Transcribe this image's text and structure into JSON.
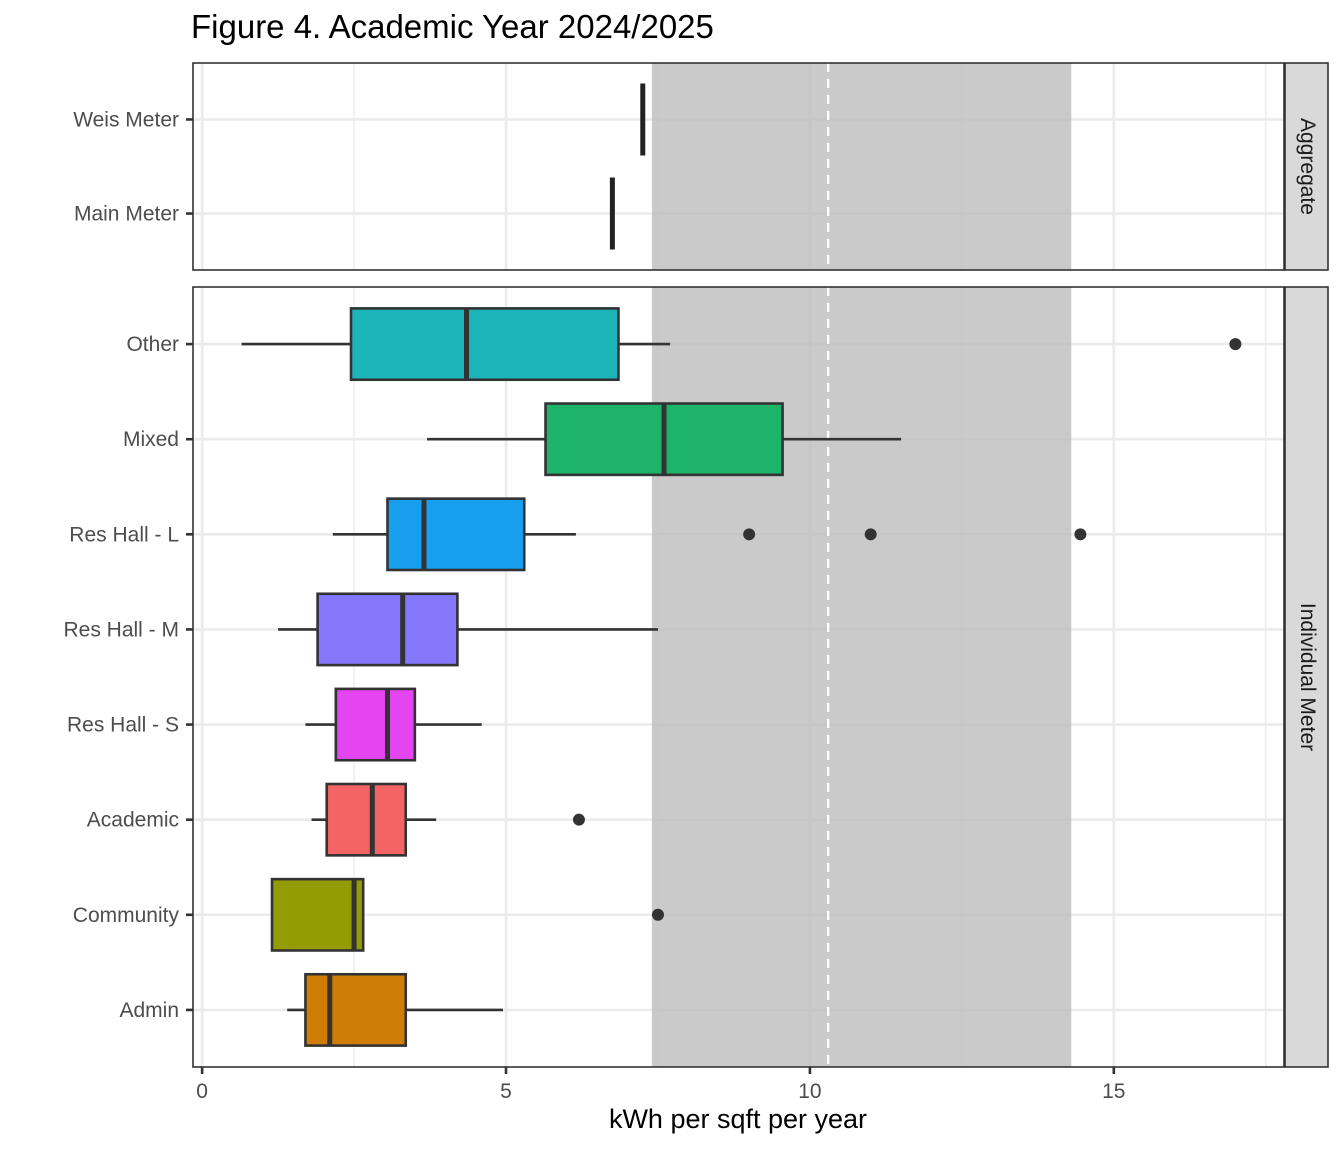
{
  "chart_data": {
    "type": "boxplot",
    "title": "Figure 4. Academic Year 2024/2025",
    "xlabel": "kWh per sqft per year",
    "ylabel": "",
    "xlim": [
      -0.15,
      17.8
    ],
    "x_ticks": [
      0,
      5,
      10,
      15
    ],
    "x_tick_labels": [
      "0",
      "5",
      "10",
      "15"
    ],
    "grid": true,
    "reference_band": {
      "from": 7.4,
      "to": 14.3,
      "color": "#C8C8C8"
    },
    "reference_line": {
      "value": 10.3,
      "style": "dashed",
      "color": "#FFFFFF"
    },
    "panels": [
      {
        "label": "Aggregate",
        "series": [
          {
            "name": "Weis Meter",
            "value": 7.25,
            "color": "#222222"
          },
          {
            "name": "Main Meter",
            "value": 6.75,
            "color": "#222222"
          }
        ]
      },
      {
        "label": "Individual Meter",
        "series": [
          {
            "name": "Other",
            "whisker_low": 0.65,
            "q1": 2.45,
            "median": 4.35,
            "q3": 6.85,
            "whisker_high": 7.7,
            "outliers": [
              17.0
            ],
            "color": "#1BB4B8"
          },
          {
            "name": "Mixed",
            "whisker_low": 3.7,
            "q1": 5.65,
            "median": 7.6,
            "q3": 9.55,
            "whisker_high": 11.5,
            "outliers": [],
            "color": "#1DB46A"
          },
          {
            "name": "Res Hall - L",
            "whisker_low": 2.15,
            "q1": 3.05,
            "median": 3.65,
            "q3": 5.3,
            "whisker_high": 6.15,
            "outliers": [
              9.0,
              11.0,
              14.45
            ],
            "color": "#189FF0"
          },
          {
            "name": "Res Hall - M",
            "whisker_low": 1.25,
            "q1": 1.9,
            "median": 3.3,
            "q3": 4.2,
            "whisker_high": 7.5,
            "outliers": [],
            "color": "#8378FC"
          },
          {
            "name": "Res Hall - S",
            "whisker_low": 1.7,
            "q1": 2.2,
            "median": 3.05,
            "q3": 3.5,
            "whisker_high": 4.6,
            "outliers": [],
            "color": "#E445F0"
          },
          {
            "name": "Academic",
            "whisker_low": 1.8,
            "q1": 2.05,
            "median": 2.8,
            "q3": 3.35,
            "whisker_high": 3.85,
            "outliers": [
              6.2
            ],
            "color": "#F46464"
          },
          {
            "name": "Community",
            "whisker_low": 1.15,
            "q1": 1.15,
            "median": 2.5,
            "q3": 2.65,
            "whisker_high": 2.65,
            "outliers": [
              7.5
            ],
            "color": "#949C03"
          },
          {
            "name": "Admin",
            "whisker_low": 1.4,
            "q1": 1.7,
            "median": 2.1,
            "q3": 3.35,
            "whisker_high": 4.95,
            "outliers": [],
            "color": "#CF7D06"
          }
        ]
      }
    ]
  }
}
